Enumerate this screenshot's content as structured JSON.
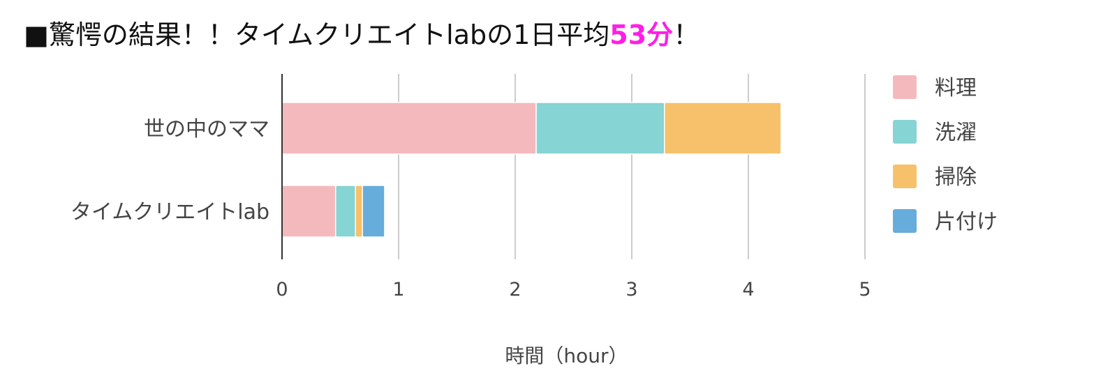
{
  "headline": {
    "prefix": "■驚愕の結果！！タイムクリエイトlabの1日平均",
    "highlight": "53分",
    "suffix": "！",
    "highlight_color": "#ff1ee6"
  },
  "chart_data": {
    "type": "bar",
    "orientation": "horizontal",
    "stacked": true,
    "title": "",
    "xlabel": "時間（hour）",
    "ylabel": "",
    "xlim": [
      0,
      5
    ],
    "xticks": [
      "0",
      "1",
      "2",
      "3",
      "4",
      "5"
    ],
    "grid": true,
    "legend_position": "right",
    "categories": [
      "世の中のママ",
      "タイムクリエイトlab"
    ],
    "series": [
      {
        "name": "料理",
        "color": "#f4b9bd",
        "values": [
          2.18,
          0.46
        ]
      },
      {
        "name": "洗濯",
        "color": "#86d4d4",
        "values": [
          1.1,
          0.17
        ]
      },
      {
        "name": "掃除",
        "color": "#f6c16a",
        "values": [
          1.0,
          0.06
        ]
      },
      {
        "name": "片付け",
        "color": "#66addc",
        "values": [
          0,
          0.19
        ]
      }
    ]
  }
}
